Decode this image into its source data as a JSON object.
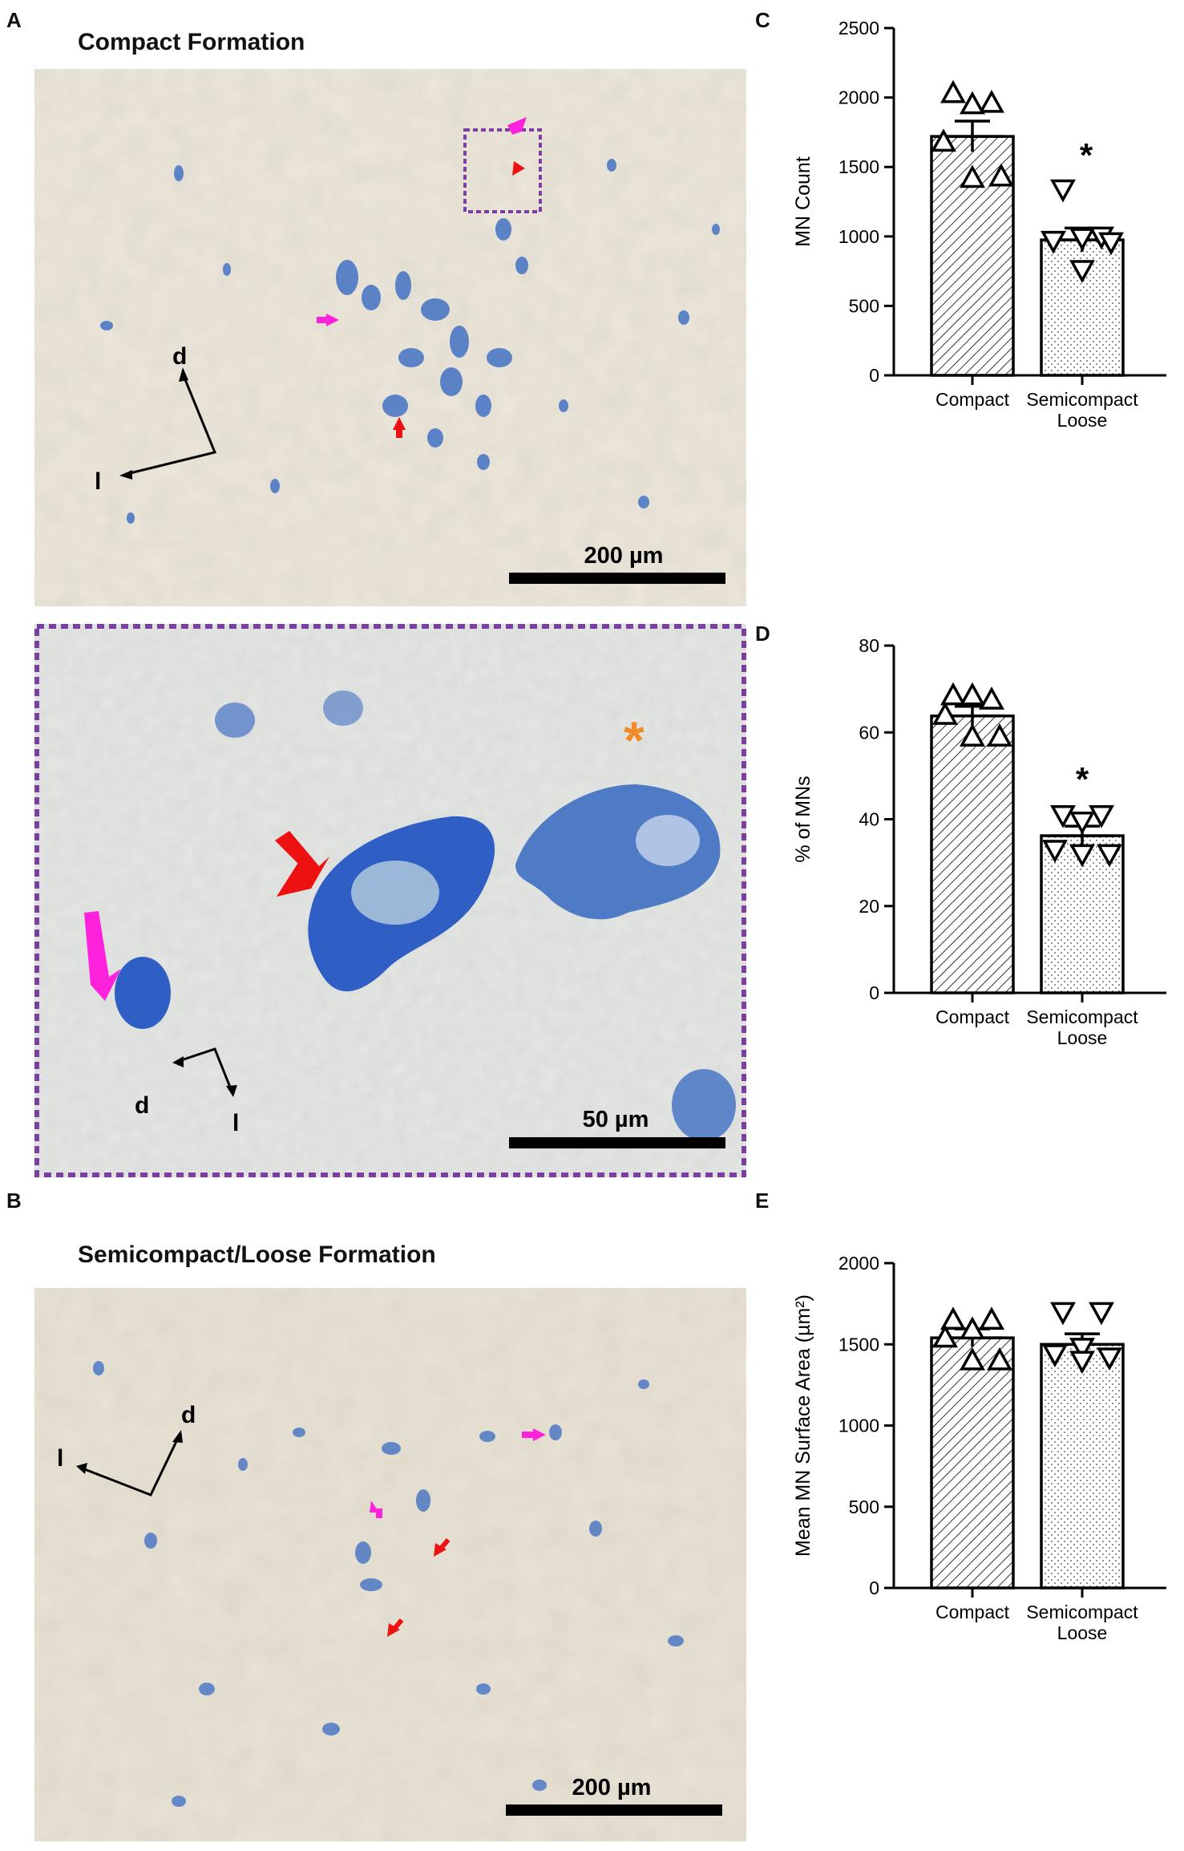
{
  "panels": {
    "A": {
      "letter": "A",
      "title": "Compact Formation",
      "scale_bar": "200 µm",
      "inset_scale_bar": "50 µm",
      "axis_d": "d",
      "axis_l": "l"
    },
    "B": {
      "letter": "B",
      "title": "Semicompact/Loose Formation",
      "scale_bar": "200 µm",
      "axis_d": "d",
      "axis_l": "l"
    },
    "C": {
      "letter": "C"
    },
    "D": {
      "letter": "D"
    },
    "E": {
      "letter": "E"
    }
  },
  "colors": {
    "tissue_bg": "#e9e4d6",
    "stain_blue": "#3f6fc2",
    "magenta_arrow": "#ff22dd",
    "red_arrow": "#ee1111",
    "orange_asterisk": "#f08c28",
    "inset_border": "#7a3fa0"
  },
  "chart_data": [
    {
      "panel": "C",
      "type": "bar",
      "categories": [
        "Compact",
        "Semicompact\nLoose"
      ],
      "category_lines": [
        [
          "Compact"
        ],
        [
          "Semicompact",
          "Loose"
        ]
      ],
      "values": [
        1720,
        975
      ],
      "sem": [
        110,
        85
      ],
      "points": [
        [
          2030,
          1960,
          1950,
          1680,
          1430,
          1420
        ],
        [
          1340,
          1000,
          990,
          970,
          960,
          760
        ]
      ],
      "markers": [
        "triangle-up",
        "triangle-down"
      ],
      "patterns": [
        "diagonal-hatch",
        "dots"
      ],
      "ylabel": "MN Count",
      "ylim": [
        0,
        2500
      ],
      "yticks": [
        0,
        500,
        1000,
        1500,
        2000,
        2500
      ],
      "significance": [
        "",
        "*"
      ]
    },
    {
      "panel": "D",
      "type": "bar",
      "categories": [
        "Compact",
        "Semicompact\nLoose"
      ],
      "category_lines": [
        [
          "Compact"
        ],
        [
          "Semicompact",
          "Loose"
        ]
      ],
      "values": [
        63.8,
        36.2
      ],
      "sem": [
        2.2,
        2.2
      ],
      "points": [
        [
          68.5,
          67.5,
          68.5,
          64,
          59,
          59
        ],
        [
          41,
          41,
          39.5,
          33,
          32,
          32
        ]
      ],
      "markers": [
        "triangle-up",
        "triangle-down"
      ],
      "patterns": [
        "diagonal-hatch",
        "dots"
      ],
      "ylabel": "% of MNs",
      "ylim": [
        0,
        80
      ],
      "yticks": [
        0,
        20,
        40,
        60,
        80
      ],
      "significance": [
        "",
        "*"
      ]
    },
    {
      "panel": "E",
      "type": "bar",
      "categories": [
        "Compact",
        "Semicompact\nLoose"
      ],
      "category_lines": [
        [
          "Compact"
        ],
        [
          "Semicompact",
          "Loose"
        ]
      ],
      "values": [
        1540,
        1500
      ],
      "sem": [
        55,
        65
      ],
      "points": [
        [
          1650,
          1650,
          1590,
          1540,
          1400,
          1400
        ],
        [
          1700,
          1700,
          1480,
          1440,
          1420,
          1400
        ]
      ],
      "markers": [
        "triangle-up",
        "triangle-down"
      ],
      "patterns": [
        "diagonal-hatch",
        "dots"
      ],
      "ylabel": "Mean MN Surface Area (µm²)",
      "ylim": [
        0,
        2000
      ],
      "yticks": [
        0,
        500,
        1000,
        1500,
        2000
      ],
      "significance": [
        "",
        ""
      ]
    }
  ]
}
